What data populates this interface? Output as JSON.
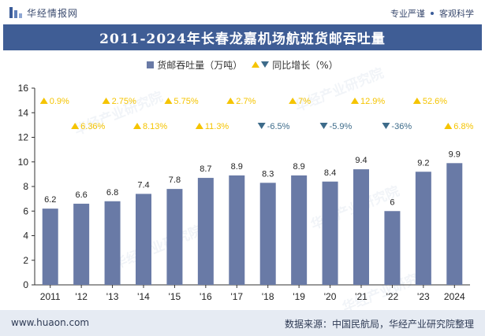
{
  "header": {
    "brand": "华经情报网",
    "slogan_left": "专业严谨",
    "slogan_right": "客观科学"
  },
  "title": "2011-2024年长春龙嘉机场航班货邮吞吐量",
  "legend": {
    "bar_label": "货邮吞吐量（万吨）",
    "line_label": "同比增长（%）"
  },
  "watermarks": [
    "华经产业研究院",
    "www.huaon.com"
  ],
  "footer": {
    "website": "www.huaon.com",
    "source": "数据来源：中国民航局，华经产业研究院整理"
  },
  "colors": {
    "bar": "#697aa6",
    "up": "#f5c400",
    "down": "#3d6b8a",
    "title_band": "#3f5d95"
  },
  "chart_data": {
    "type": "bar",
    "categories": [
      "2011",
      "'12",
      "'13",
      "'14",
      "'15",
      "'16",
      "'17",
      "'18",
      "'19",
      "'20",
      "'21",
      "'22",
      "'23",
      "2024"
    ],
    "series": [
      {
        "name": "货邮吞吐量（万吨）",
        "values": [
          6.2,
          6.6,
          6.8,
          7.4,
          7.8,
          8.7,
          8.9,
          8.3,
          8.9,
          8.4,
          9.4,
          6.0,
          9.2,
          9.9
        ]
      }
    ],
    "value_labels": [
      "6.2",
      "6.6",
      "6.8",
      "7.4",
      "7.8",
      "8.7",
      "8.9",
      "8.3",
      "8.9",
      "8.4",
      "9.4",
      "6",
      "9.2",
      "9.9"
    ],
    "growth": [
      {
        "text": "0.9%",
        "dir": "up"
      },
      {
        "text": "6.36%",
        "dir": "up"
      },
      {
        "text": "2.75%",
        "dir": "up"
      },
      {
        "text": "8.13%",
        "dir": "up"
      },
      {
        "text": "5.75%",
        "dir": "up"
      },
      {
        "text": "11.3%",
        "dir": "up"
      },
      {
        "text": "2.7%",
        "dir": "up"
      },
      {
        "text": "-6.5%",
        "dir": "down"
      },
      {
        "text": "7%",
        "dir": "up"
      },
      {
        "text": "-5.9%",
        "dir": "down"
      },
      {
        "text": "12.9%",
        "dir": "up"
      },
      {
        "text": "-36%",
        "dir": "down"
      },
      {
        "text": "52.6%",
        "dir": "up"
      },
      {
        "text": "6.8%",
        "dir": "up"
      }
    ],
    "ylim": [
      0,
      16
    ],
    "yticks": [
      0,
      2,
      4,
      6,
      8,
      10,
      12,
      14,
      16
    ],
    "grid": false,
    "legend_position": "top-center"
  }
}
